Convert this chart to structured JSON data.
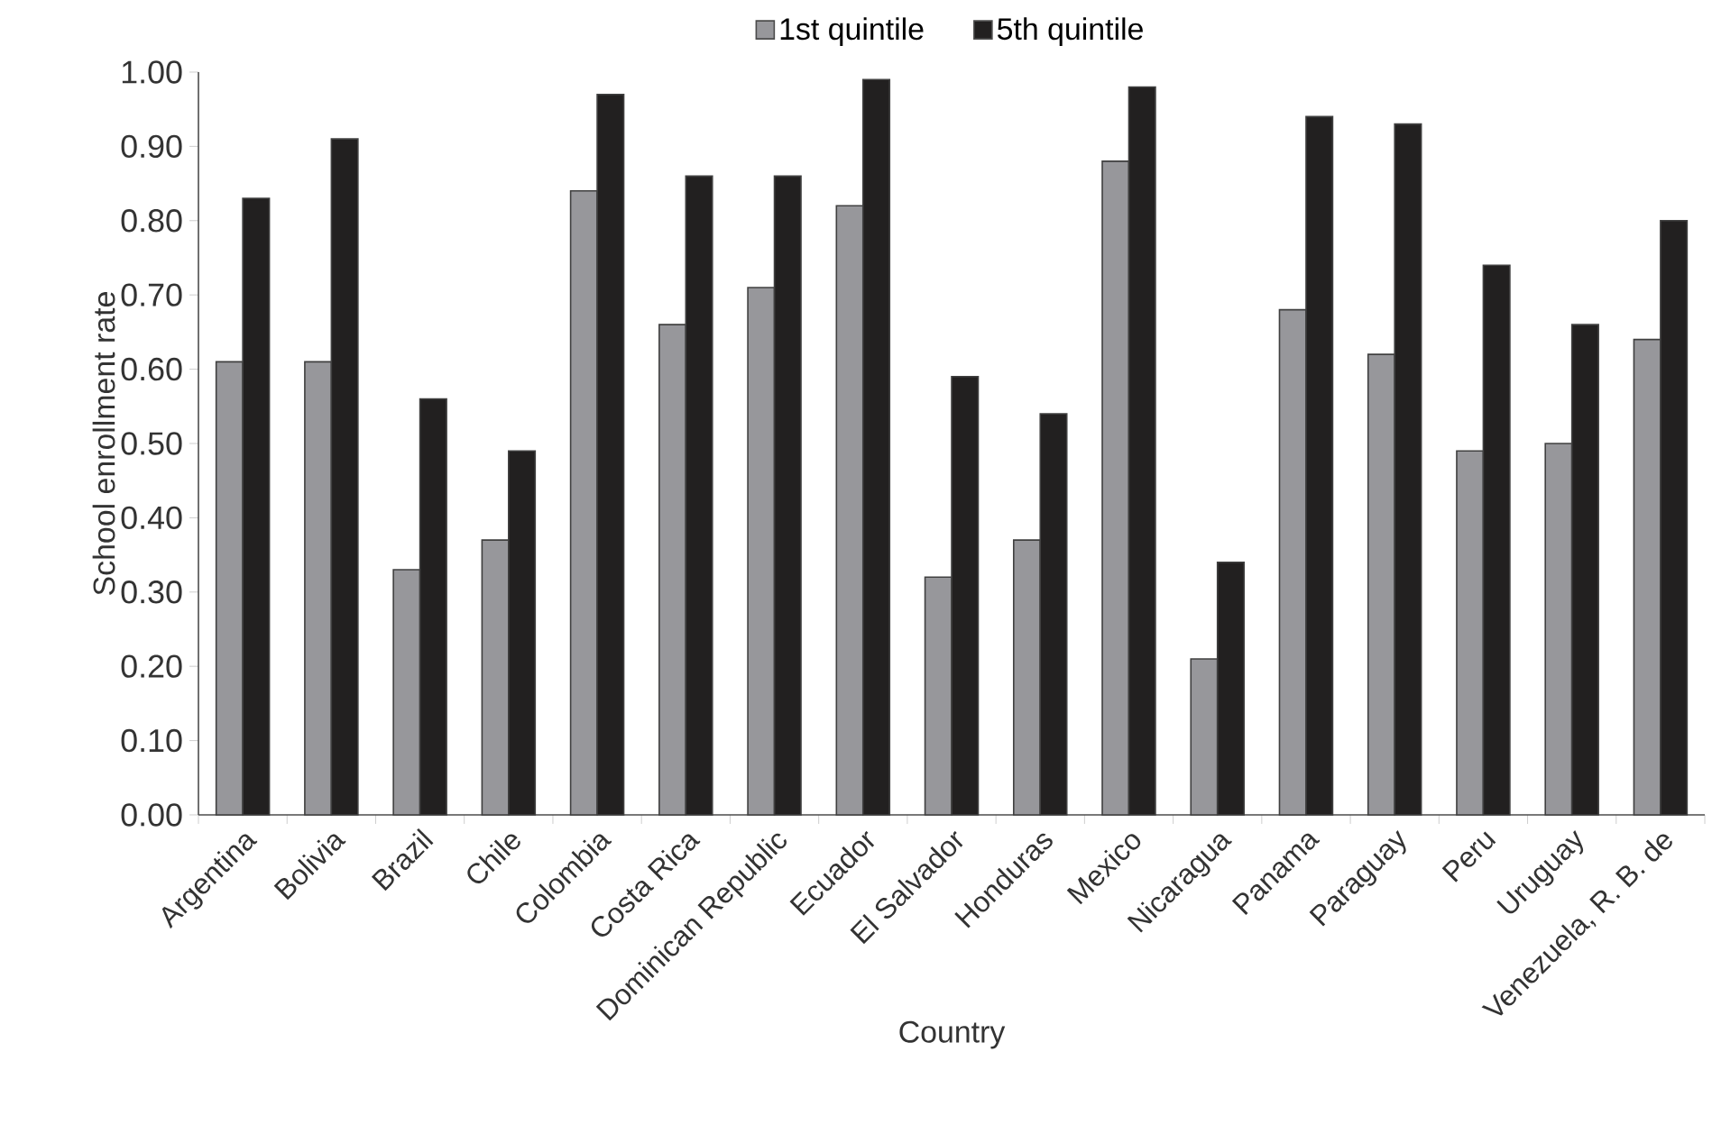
{
  "chart_data": {
    "type": "bar",
    "xlabel": "Country",
    "ylabel": "School enrollment rate",
    "categories": [
      "Argentina",
      "Bolivia",
      "Brazil",
      "Chile",
      "Colombia",
      "Costa Rica",
      "Dominican Republic",
      "Ecuador",
      "El Salvador",
      "Honduras",
      "Mexico",
      "Nicaragua",
      "Panama",
      "Paraguay",
      "Peru",
      "Uruguay",
      "Venezuela, R. B. de"
    ],
    "series": [
      {
        "name": "1st quintile",
        "color": "#97979b",
        "values": [
          0.61,
          0.61,
          0.33,
          0.37,
          0.84,
          0.66,
          0.71,
          0.82,
          0.32,
          0.37,
          0.88,
          0.21,
          0.68,
          0.62,
          0.49,
          0.5,
          0.64
        ]
      },
      {
        "name": "5th quintile",
        "color": "#222020",
        "values": [
          0.83,
          0.91,
          0.56,
          0.49,
          0.97,
          0.86,
          0.86,
          0.99,
          0.59,
          0.54,
          0.98,
          0.34,
          0.94,
          0.93,
          0.74,
          0.66,
          0.8
        ]
      }
    ],
    "ylim": [
      0,
      1
    ],
    "yticks": [
      {
        "value": 0,
        "label": "0.00"
      },
      {
        "value": 0.1,
        "label": "0.10"
      },
      {
        "value": 0.2,
        "label": "0.20"
      },
      {
        "value": 0.3,
        "label": "0.30"
      },
      {
        "value": 0.4,
        "label": "0.40"
      },
      {
        "value": 0.5,
        "label": "0.50"
      },
      {
        "value": 0.6,
        "label": "0.60"
      },
      {
        "value": 0.7,
        "label": "0.70"
      },
      {
        "value": 0.8,
        "label": "0.80"
      },
      {
        "value": 0.9,
        "label": "0.90"
      },
      {
        "value": 1,
        "label": "1.00"
      }
    ],
    "legend": "top",
    "grid": false
  }
}
